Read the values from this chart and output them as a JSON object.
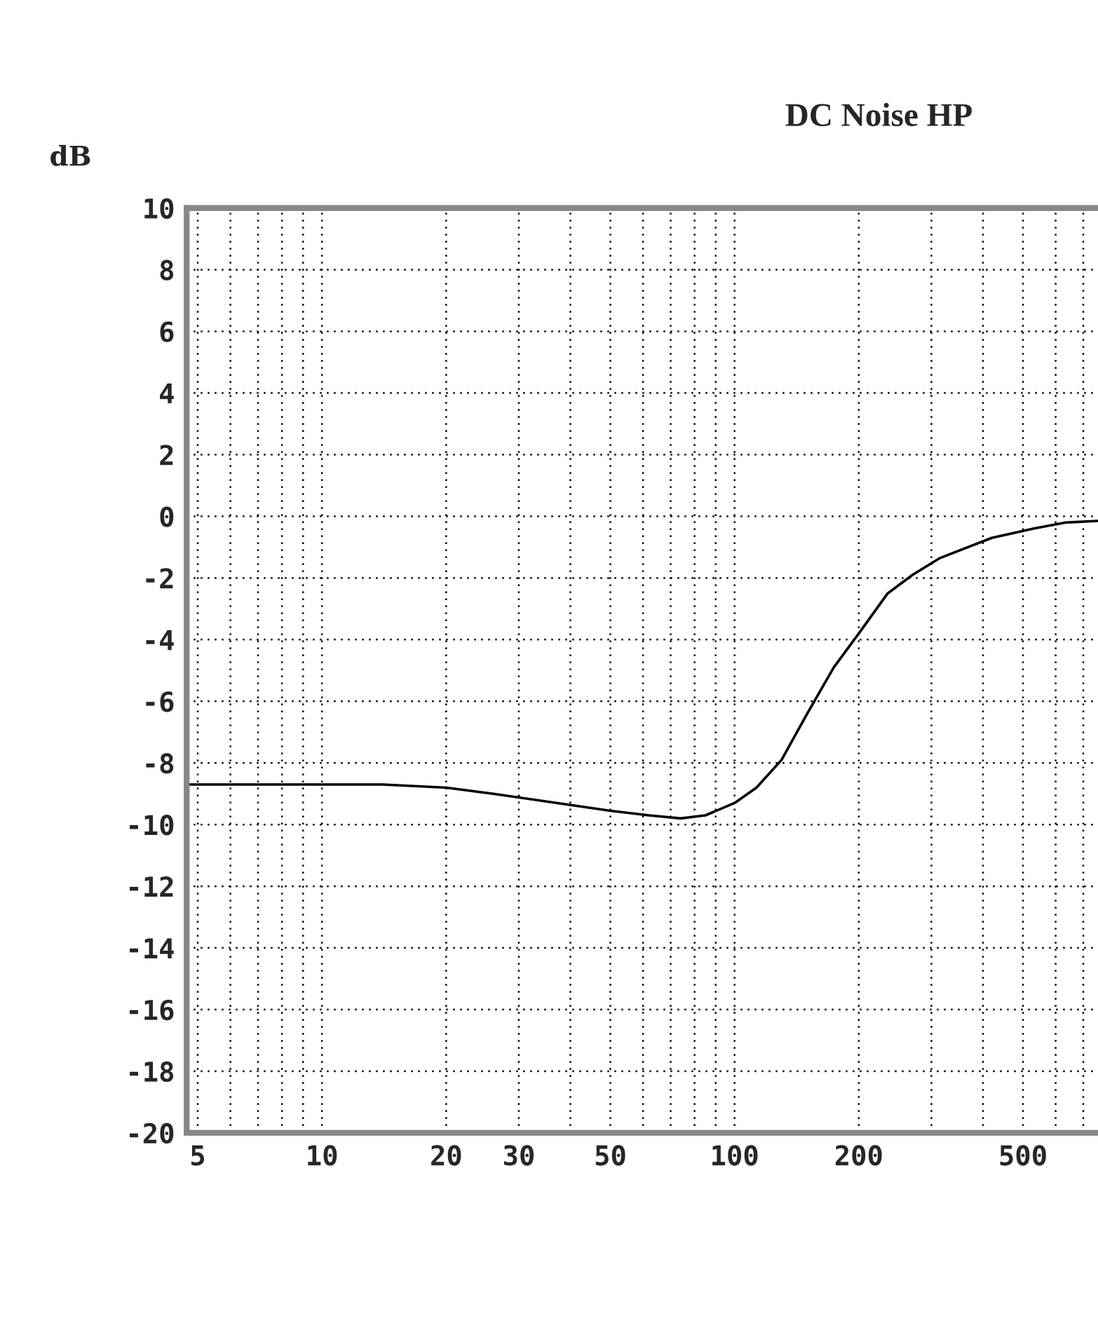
{
  "chart_data": {
    "type": "line",
    "title": "DC Noise HP",
    "ylabel": "dB",
    "log": "x",
    "grid": true,
    "line_style": "solid",
    "marker": "none",
    "xlim": [
      4.7,
      760
    ],
    "ylim": [
      -20,
      10
    ],
    "xticks": [
      5,
      {
        "value": 6,
        "label": null
      },
      {
        "value": 7,
        "label": null
      },
      {
        "value": 8,
        "label": null
      },
      {
        "value": 9,
        "label": null
      },
      10,
      20,
      30,
      {
        "value": 40,
        "label": null
      },
      50,
      {
        "value": 60,
        "label": null
      },
      {
        "value": 70,
        "label": null
      },
      {
        "value": 80,
        "label": null
      },
      {
        "value": 90,
        "label": null
      },
      100,
      200,
      {
        "value": 300,
        "label": null
      },
      {
        "value": 400,
        "label": null
      },
      500,
      {
        "value": 600,
        "label": null
      },
      {
        "value": 700,
        "label": null
      }
    ],
    "yticks": [
      -20,
      -18,
      -16,
      -14,
      -12,
      -10,
      -8,
      -6,
      -4,
      -2,
      0,
      2,
      4,
      6,
      8,
      10
    ],
    "x": [
      4.7,
      10,
      14,
      20,
      26,
      35,
      50,
      62,
      74,
      85,
      100,
      113,
      130,
      150,
      174,
      200,
      235,
      270,
      315,
      420,
      530,
      635,
      760
    ],
    "series": [
      {
        "color": "#000000",
        "values": [
          -8.7,
          -8.7,
          -8.7,
          -8.8,
          -9.0,
          -9.25,
          -9.55,
          -9.7,
          -9.8,
          -9.7,
          -9.3,
          -8.8,
          -7.9,
          -6.4,
          -4.9,
          -3.8,
          -2.5,
          -1.9,
          -1.35,
          -0.7,
          -0.4,
          -0.2,
          -0.15
        ]
      }
    ]
  }
}
